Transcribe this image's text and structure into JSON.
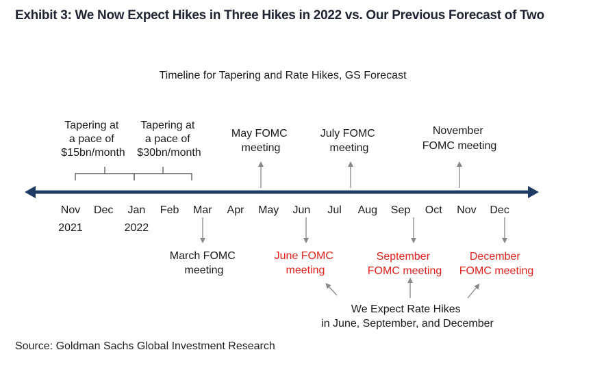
{
  "title": "Exhibit 3: We Now Expect Hikes in Three Hikes in 2022 vs. Our Previous Forecast of Two",
  "diagram_title": "Timeline for Tapering  and Rate Hikes, GS Forecast",
  "source": "Source: Goldman Sachs Global Investment Research",
  "colors": {
    "axis": "#1f3b63",
    "highlight": "#e0201b",
    "text": "#1a1a1a",
    "arrow": "#888888"
  },
  "months": [
    {
      "label": "Nov",
      "year": "2021"
    },
    {
      "label": "Dec",
      "year": ""
    },
    {
      "label": "Jan",
      "year": "2022"
    },
    {
      "label": "Feb",
      "year": ""
    },
    {
      "label": "Mar",
      "year": ""
    },
    {
      "label": "Apr",
      "year": ""
    },
    {
      "label": "May",
      "year": ""
    },
    {
      "label": "Jun",
      "year": ""
    },
    {
      "label": "Jul",
      "year": ""
    },
    {
      "label": "Aug",
      "year": ""
    },
    {
      "label": "Sep",
      "year": ""
    },
    {
      "label": "Oct",
      "year": ""
    },
    {
      "label": "Nov",
      "year": ""
    },
    {
      "label": "Dec",
      "year": ""
    }
  ],
  "tapering": [
    {
      "lines": [
        "Tapering at",
        "a pace of",
        "$15bn/month"
      ]
    },
    {
      "lines": [
        "Tapering at",
        "a pace of",
        "$30bn/month"
      ]
    }
  ],
  "meetings_above": [
    {
      "lines": [
        "May FOMC",
        "meeting"
      ]
    },
    {
      "lines": [
        "July FOMC",
        "meeting"
      ]
    },
    {
      "lines": [
        "November",
        "FOMC meeting"
      ]
    }
  ],
  "meetings_below": [
    {
      "lines": [
        "March FOMC",
        "meeting"
      ],
      "hike": false
    },
    {
      "lines": [
        "June FOMC",
        "meeting"
      ],
      "hike": true
    },
    {
      "lines": [
        "September",
        "FOMC meeting"
      ],
      "hike": true
    },
    {
      "lines": [
        "December",
        "FOMC meeting"
      ],
      "hike": true
    }
  ],
  "annotation": [
    "We Expect Rate Hikes",
    "in June, September, and December"
  ]
}
